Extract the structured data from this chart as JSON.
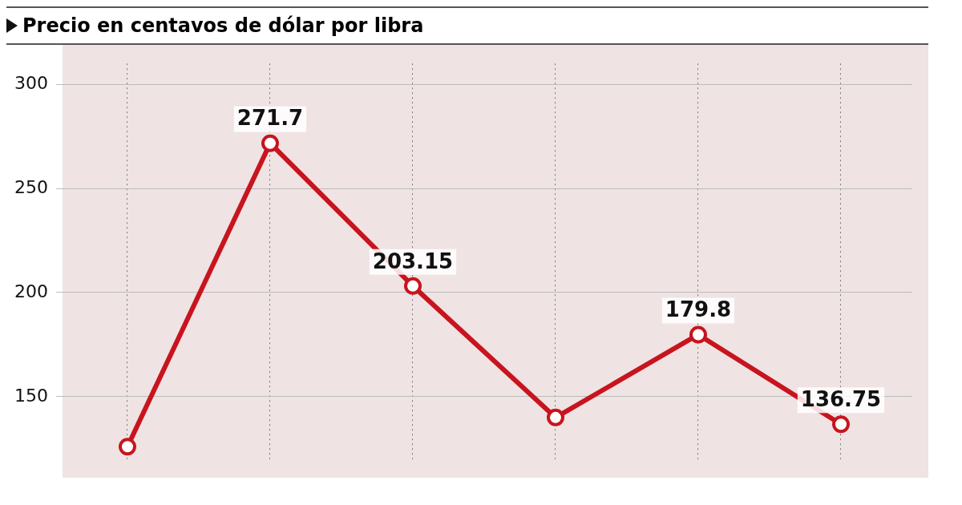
{
  "chart_data": {
    "type": "line",
    "subtitle": "Precio en centavos de dólar por libra",
    "categories": [
      null,
      null,
      null,
      null,
      null,
      null
    ],
    "series": [
      {
        "color": "#c8141e",
        "values": [
          126,
          271.7,
          203.15,
          140,
          179.8,
          136.75
        ],
        "value_labels": [
          null,
          "271.7",
          "203.15",
          null,
          "179.8",
          "136.75"
        ]
      }
    ],
    "ylim": [
      120,
      310
    ],
    "yticks": [
      150,
      200,
      250,
      300
    ],
    "grid": true,
    "marker": "circle",
    "line_style": "solid",
    "legend": false,
    "tick_labels": "y"
  }
}
